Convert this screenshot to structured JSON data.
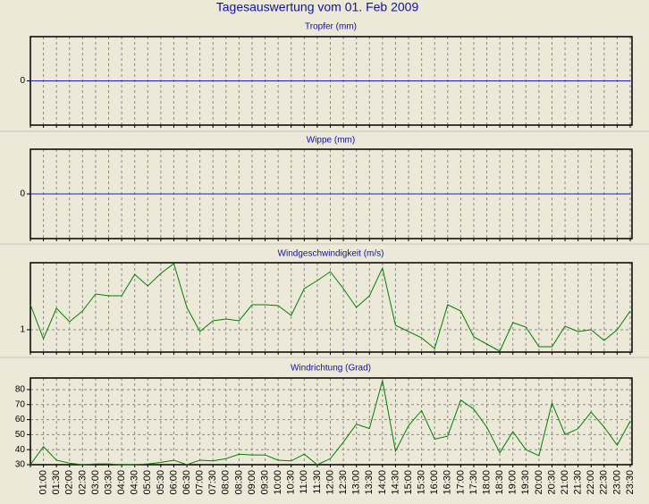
{
  "title": "Tagesauswertung vom 01. Feb 2009",
  "chart_data": [
    {
      "type": "line",
      "title": "Tropfer (mm)",
      "ylim": [
        -1,
        1
      ],
      "yticks": [
        0
      ],
      "grid": "x",
      "series": [
        {
          "color": "#2020c0",
          "values": [
            0,
            0,
            0,
            0,
            0,
            0,
            0,
            0,
            0,
            0,
            0,
            0,
            0,
            0,
            0,
            0,
            0,
            0,
            0,
            0,
            0,
            0,
            0,
            0,
            0,
            0,
            0,
            0,
            0,
            0,
            0,
            0,
            0,
            0,
            0,
            0,
            0,
            0,
            0,
            0,
            0,
            0,
            0,
            0,
            0,
            0,
            0
          ]
        }
      ]
    },
    {
      "type": "line",
      "title": "Wippe (mm)",
      "ylim": [
        -1,
        1
      ],
      "yticks": [
        0
      ],
      "grid": "x",
      "series": [
        {
          "color": "#2020c0",
          "values": [
            0,
            0,
            0,
            0,
            0,
            0,
            0,
            0,
            0,
            0,
            0,
            0,
            0,
            0,
            0,
            0,
            0,
            0,
            0,
            0,
            0,
            0,
            0,
            0,
            0,
            0,
            0,
            0,
            0,
            0,
            0,
            0,
            0,
            0,
            0,
            0,
            0,
            0,
            0,
            0,
            0,
            0,
            0,
            0,
            0,
            0,
            0
          ]
        }
      ]
    },
    {
      "type": "line",
      "title": "Windgeschwindigkeit (m/s)",
      "ylim": [
        0.75,
        1.75
      ],
      "yticks": [
        1
      ],
      "grid": "xy",
      "series": [
        {
          "color": "#008000",
          "values": [
            1.28,
            0.9,
            1.24,
            1.09,
            1.21,
            1.4,
            1.38,
            1.38,
            1.62,
            1.49,
            1.63,
            1.74,
            1.25,
            0.98,
            1.1,
            1.12,
            1.1,
            1.28,
            1.28,
            1.27,
            1.16,
            1.46,
            1.55,
            1.65,
            1.46,
            1.25,
            1.38,
            1.69,
            1.05,
            0.98,
            0.91,
            0.79,
            1.28,
            1.21,
            0.92,
            0.84,
            0.76,
            1.08,
            1.03,
            0.81,
            0.81,
            1.04,
            0.98,
            1.0,
            0.88,
            1.0,
            1.21
          ]
        }
      ]
    },
    {
      "type": "line",
      "title": "Windrichtung (Grad)",
      "ylim": [
        30,
        87.7
      ],
      "yticks": [
        30,
        40,
        50,
        60,
        70,
        80
      ],
      "grid": "xy",
      "categories": [
        null,
        "01:00",
        "01:30",
        "02:00",
        "02:30",
        "03:00",
        "03:30",
        "04:00",
        "04:30",
        "05:00",
        "05:30",
        "06:00",
        "06:30",
        "07:00",
        "07:30",
        "08:00",
        "08:30",
        "09:00",
        "09:30",
        "10:00",
        "10:30",
        "11:00",
        "11:30",
        "12:00",
        "12:30",
        "13:00",
        "13:30",
        "14:00",
        "14:30",
        "15:00",
        "15:30",
        "16:00",
        "16:30",
        "17:00",
        "17:30",
        "18:00",
        "18:30",
        "19:00",
        "19:30",
        "20:00",
        "20:30",
        "21:00",
        "21:30",
        "22:00",
        "22:30",
        "23:00",
        "23:30"
      ],
      "series": [
        {
          "color": "#008000",
          "values": [
            30,
            42,
            33,
            31,
            30,
            30.5,
            30.5,
            30,
            30,
            30.5,
            31.5,
            33,
            30,
            33,
            32.5,
            34,
            37,
            36.5,
            36.5,
            33,
            32.5,
            37,
            30,
            34,
            45,
            57,
            54,
            86,
            39,
            56,
            66,
            47,
            49,
            73,
            67,
            55,
            38,
            52,
            40,
            36,
            71,
            50,
            54,
            65,
            55,
            43,
            59
          ]
        }
      ]
    }
  ]
}
